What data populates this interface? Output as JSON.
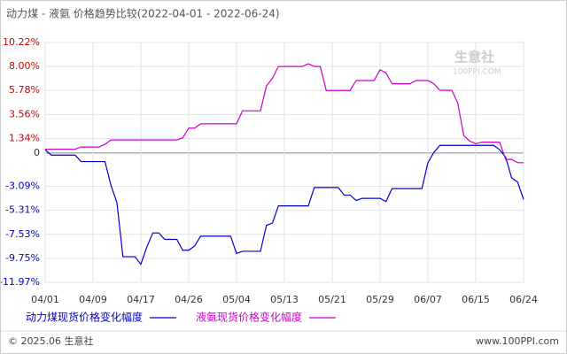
{
  "chart_data": {
    "type": "line",
    "title": "动力煤 - 液氨 价格趋势比较(2022-04-01 - 2022-06-24)",
    "categories": [
      "04/01",
      null,
      null,
      null,
      null,
      null,
      null,
      null,
      "04/09",
      null,
      null,
      null,
      null,
      null,
      null,
      null,
      "04/17",
      null,
      null,
      null,
      null,
      null,
      null,
      null,
      "04/26",
      null,
      null,
      null,
      null,
      null,
      null,
      null,
      "05/04",
      null,
      null,
      null,
      null,
      null,
      null,
      null,
      "05/13",
      null,
      null,
      null,
      null,
      null,
      null,
      null,
      "05/21",
      null,
      null,
      null,
      null,
      null,
      null,
      null,
      "05/29",
      null,
      null,
      null,
      null,
      null,
      null,
      null,
      "06/07",
      null,
      null,
      null,
      null,
      null,
      null,
      null,
      "06/15",
      null,
      null,
      null,
      null,
      null,
      null,
      null,
      "06/24"
    ],
    "series": [
      {
        "name": "动力煤现货价格变化幅度",
        "color": "#0000cc",
        "values": [
          0.3,
          -0.2,
          -0.2,
          -0.2,
          -0.2,
          -0.2,
          -0.8,
          -0.8,
          -0.8,
          -0.8,
          -0.8,
          -3.0,
          -4.6,
          -9.6,
          -9.6,
          -9.6,
          -10.3,
          -8.7,
          -7.4,
          -7.4,
          -8.0,
          -8.0,
          -8.0,
          -9.0,
          -9.0,
          -8.6,
          -7.7,
          -7.7,
          -7.7,
          -7.7,
          -7.7,
          -7.7,
          -9.3,
          -9.1,
          -9.1,
          -9.1,
          -9.1,
          -6.7,
          -6.5,
          -4.9,
          -4.9,
          -4.9,
          -4.9,
          -4.9,
          -4.9,
          -3.2,
          -3.2,
          -3.2,
          -3.2,
          -3.2,
          -3.9,
          -3.9,
          -4.4,
          -4.2,
          -4.2,
          -4.2,
          -4.2,
          -4.5,
          -3.3,
          -3.3,
          -3.3,
          -3.3,
          -3.3,
          -3.3,
          -0.9,
          0.05,
          0.7,
          0.7,
          0.7,
          0.7,
          0.7,
          0.7,
          0.7,
          0.7,
          0.7,
          0.7,
          0.3,
          -0.4,
          -2.3,
          -2.7,
          -4.3
        ]
      },
      {
        "name": "液氨现货价格变化幅度",
        "color": "#cc00cc",
        "values": [
          0.35,
          0.35,
          0.35,
          0.35,
          0.35,
          0.35,
          0.55,
          0.55,
          0.55,
          0.55,
          0.8,
          1.2,
          1.2,
          1.2,
          1.2,
          1.2,
          1.2,
          1.2,
          1.2,
          1.2,
          1.2,
          1.2,
          1.2,
          1.4,
          2.3,
          2.3,
          2.7,
          2.7,
          2.7,
          2.7,
          2.7,
          2.7,
          2.7,
          3.9,
          3.9,
          3.9,
          3.9,
          6.2,
          6.9,
          8.0,
          8.0,
          8.0,
          8.0,
          8.0,
          8.25,
          8.0,
          8.0,
          5.78,
          5.78,
          5.78,
          5.78,
          5.78,
          6.7,
          6.7,
          6.7,
          6.7,
          7.7,
          7.4,
          6.4,
          6.4,
          6.4,
          6.4,
          6.7,
          6.7,
          6.7,
          6.4,
          5.8,
          5.8,
          5.8,
          4.6,
          1.6,
          1.1,
          0.85,
          1.0,
          1.0,
          1.0,
          1.0,
          -0.6,
          -0.6,
          -0.9,
          -0.9
        ]
      }
    ],
    "ylim": [
      -11.97,
      10.22
    ],
    "yticks": [
      {
        "value": 10.22,
        "label": "10.22%"
      },
      {
        "value": 8.0,
        "label": "8.00%"
      },
      {
        "value": 5.78,
        "label": "5.78%"
      },
      {
        "value": 3.56,
        "label": "3.56%"
      },
      {
        "value": 1.34,
        "label": "1.34%"
      },
      0,
      {
        "value": -3.09,
        "label": "-3.09%"
      },
      {
        "value": -5.31,
        "label": "-5.31%"
      },
      {
        "value": -7.53,
        "label": "-7.53%"
      },
      {
        "value": -9.75,
        "label": "-9.75%"
      },
      {
        "value": -11.97,
        "label": "-11.97%"
      }
    ],
    "grid": true
  },
  "watermark": {
    "name": "生意社",
    "site": "100PPI.COM"
  },
  "footer": {
    "copyright": "© 2025.06 生意社",
    "url": "www.100PPI.com"
  }
}
